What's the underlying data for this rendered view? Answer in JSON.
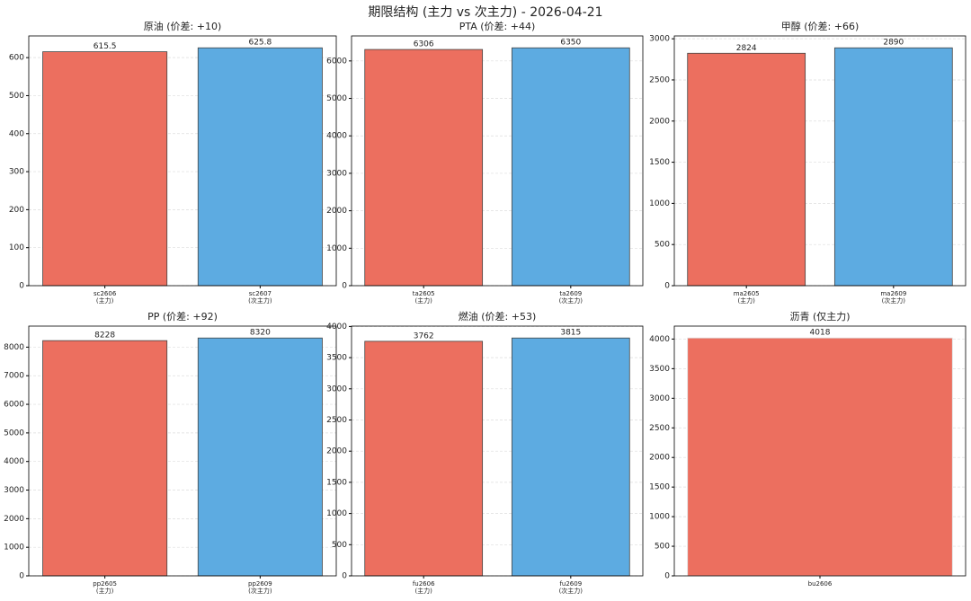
{
  "title": "期限结构 (主力 vs 次主力) - 2026-04-21",
  "chart_data": [
    {
      "type": "bar",
      "title": "原油 (价差: +10)",
      "categories": [
        "sc2606",
        "sc2607"
      ],
      "category_roles": [
        "(主力)",
        "(次主力)"
      ],
      "values": [
        615.5,
        625.8
      ],
      "colors": [
        "#ec6f5f",
        "#5dabe1"
      ],
      "ylim": [
        0,
        657.09
      ],
      "yticks": [
        0,
        100,
        200,
        300,
        400,
        500,
        600
      ],
      "grid": true
    },
    {
      "type": "bar",
      "title": "PTA (价差: +44)",
      "categories": [
        "ta2605",
        "ta2609"
      ],
      "category_roles": [
        "(主力)",
        "(次主力)"
      ],
      "values": [
        6306,
        6350
      ],
      "colors": [
        "#ec6f5f",
        "#5dabe1"
      ],
      "ylim": [
        0,
        6667.5
      ],
      "yticks": [
        0,
        1000,
        2000,
        3000,
        4000,
        5000,
        6000
      ],
      "grid": true
    },
    {
      "type": "bar",
      "title": "甲醇 (价差: +66)",
      "categories": [
        "ma2605",
        "ma2609"
      ],
      "category_roles": [
        "(主力)",
        "(次主力)"
      ],
      "values": [
        2824,
        2890
      ],
      "colors": [
        "#ec6f5f",
        "#5dabe1"
      ],
      "ylim": [
        0,
        3034.5
      ],
      "yticks": [
        0,
        500,
        1000,
        1500,
        2000,
        2500,
        3000
      ],
      "grid": true
    },
    {
      "type": "bar",
      "title": "PP (价差: +92)",
      "categories": [
        "pp2605",
        "pp2609"
      ],
      "category_roles": [
        "(主力)",
        "(次主力)"
      ],
      "values": [
        8228,
        8320
      ],
      "colors": [
        "#ec6f5f",
        "#5dabe1"
      ],
      "ylim": [
        0,
        8736
      ],
      "yticks": [
        0,
        1000,
        2000,
        3000,
        4000,
        5000,
        6000,
        7000,
        8000
      ],
      "grid": true
    },
    {
      "type": "bar",
      "title": "燃油 (价差: +53)",
      "categories": [
        "fu2606",
        "fu2609"
      ],
      "category_roles": [
        "(主力)",
        "(次主力)"
      ],
      "values": [
        3762,
        3815
      ],
      "colors": [
        "#ec6f5f",
        "#5dabe1"
      ],
      "ylim": [
        0,
        4005.75
      ],
      "yticks": [
        0,
        500,
        1000,
        1500,
        2000,
        2500,
        3000,
        3500,
        4000
      ],
      "grid": true
    },
    {
      "type": "bar",
      "title": "沥青 (仅主力)",
      "categories": [
        "bu2606"
      ],
      "values": [
        4018
      ],
      "colors": [
        "#ec6f5f"
      ],
      "ylim": [
        0,
        4218.9
      ],
      "yticks": [
        0,
        500,
        1000,
        1500,
        2000,
        2500,
        3000,
        3500,
        4000
      ],
      "grid": true
    }
  ]
}
